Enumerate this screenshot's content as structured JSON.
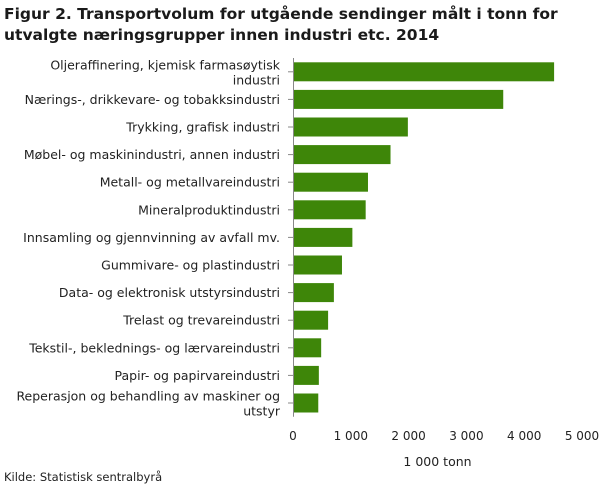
{
  "title": "Figur 2. Transportvolum for utgående sendinger målt i tonn for utvalgte næringsgrupper innen industri etc. 2014",
  "source": "Kilde: Statistisk sentralbyrå",
  "colors": {
    "bar": "#3e8609",
    "axis": "#888888"
  },
  "chart_data": {
    "type": "bar",
    "orientation": "horizontal",
    "categories": [
      "Oljeraffinering, kjemisk farmasøytisk industri",
      "Nærings-, drikkevare- og tobakksindustri",
      "Trykking, grafisk industri",
      "Møbel- og maskinindustri, annen industri",
      "Metall-  og metallvareindustri",
      "Mineralproduktindustri",
      "Innsamling og gjennvinning av avfall mv.",
      "Gummivare- og plastindustri",
      "Data- og elektronisk utstyrsindustri",
      "Trelast og trevareindustri",
      "Tekstil-, beklednings- og lærvareindustri",
      "Papir- og papirvareindustri",
      "Reperasjon  og behandling  av maskiner  og utstyr"
    ],
    "values": [
      4500,
      3620,
      1970,
      1670,
      1280,
      1240,
      1010,
      830,
      690,
      590,
      470,
      430,
      420
    ],
    "xlabel": "1 000 tonn",
    "xlim": [
      0,
      5000
    ],
    "xticks": [
      0,
      1000,
      2000,
      3000,
      4000,
      5000
    ],
    "xtick_labels": [
      "0",
      "1 000",
      "2 000",
      "3 000",
      "4 000",
      "5 000"
    ],
    "grid": false
  }
}
